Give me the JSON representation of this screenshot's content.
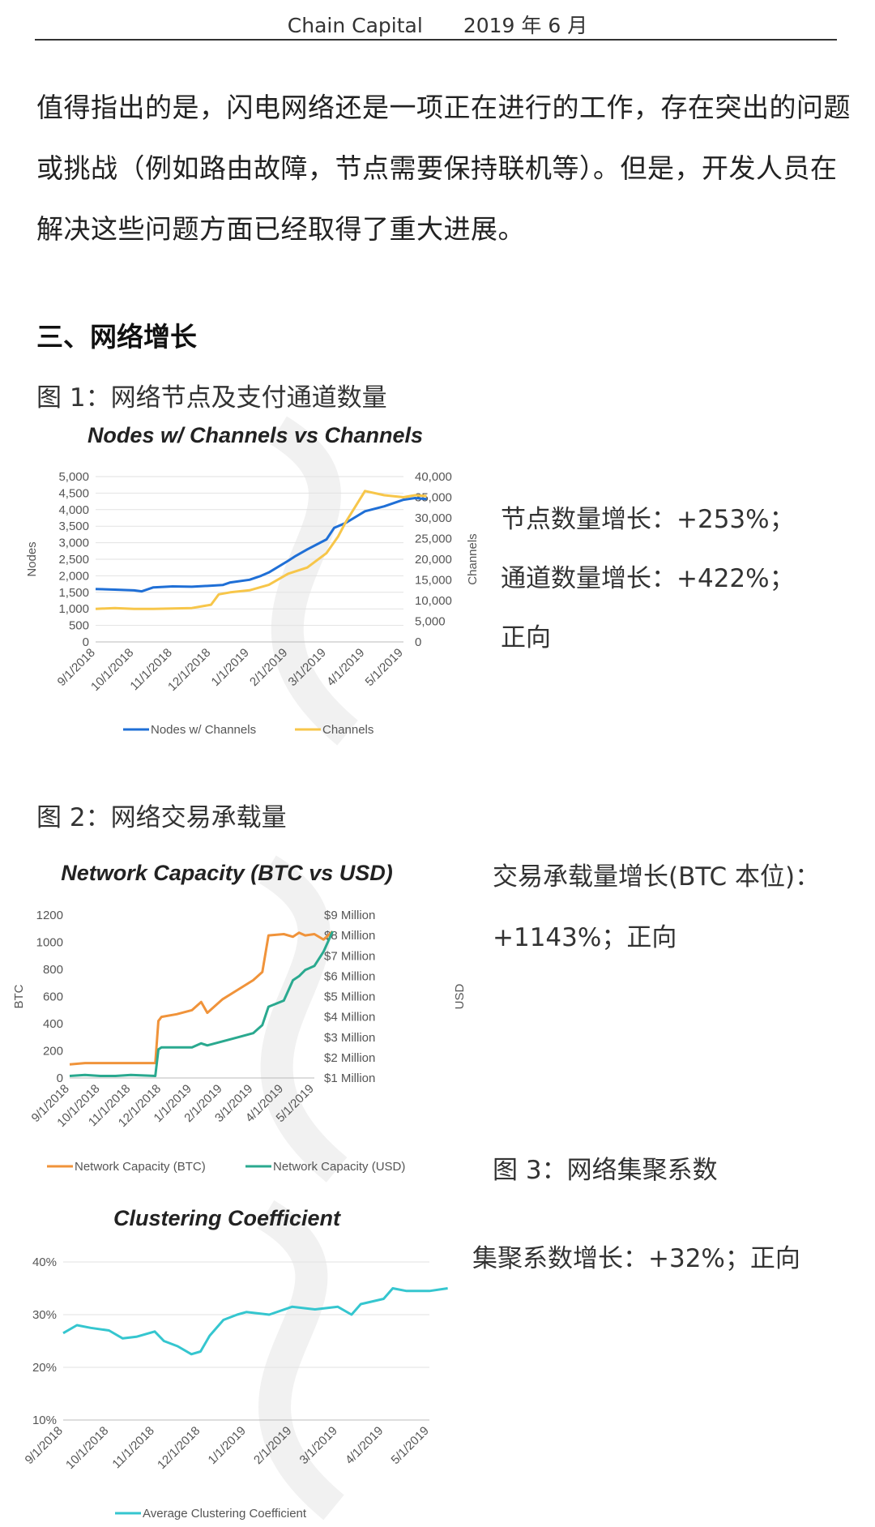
{
  "header": {
    "org": "Chain Capital",
    "date": "2019 年 6 月"
  },
  "paragraph": {
    "lines": [
      "值得指出的是，闪电网络还是一项正在进行的工作，存在突出的问题",
      "或挑战（例如路由故障，节点需要保持联机等）。但是，开发人员在",
      "解决这些问题方面已经取得了重大进展。"
    ]
  },
  "section": {
    "title": "三、网络增长"
  },
  "figures": [
    {
      "caption": "图 1：网络节点及支付通道数量",
      "stats": [
        "节点数量增长：+253%；",
        "通道数量增长：+422%；",
        "正向"
      ]
    },
    {
      "caption": "图 2：网络交易承载量",
      "stats": [
        "交易承载量增长(BTC 本位)：",
        "+1143%；正向"
      ]
    },
    {
      "caption": "图 3：网络集聚系数",
      "stats": [
        "集聚系数增长：+32%；正向"
      ]
    }
  ],
  "colors": {
    "blue": "#1f6fd6",
    "yellow": "#f7c64a",
    "orange": "#f0933a",
    "teal": "#2aa98f",
    "cyan": "#35c6cf"
  },
  "chart_data": [
    {
      "type": "line",
      "title": "Nodes w/ Channels vs Channels",
      "ylabel": "Nodes",
      "y2label": "Channels",
      "x_ticks": [
        "9/1/2018",
        "10/1/2018",
        "11/1/2018",
        "12/1/2018",
        "1/1/2019",
        "2/1/2019",
        "3/1/2019",
        "4/1/2019",
        "5/1/2019"
      ],
      "y_ticks": [
        "5,000",
        "4,500",
        "4,000",
        "3,500",
        "3,000",
        "2,500",
        "2,000",
        "1,500",
        "1,000",
        "500",
        "0"
      ],
      "y2_ticks": [
        "40,000",
        "35,000",
        "30,000",
        "25,000",
        "20,000",
        "15,000",
        "10,000",
        "5,000",
        "0"
      ],
      "ylim": [
        0,
        5000
      ],
      "y2lim": [
        0,
        40000
      ],
      "grid": true,
      "legend_position": "bottom",
      "series": [
        {
          "name": "Nodes w/ Channels",
          "axis": "left",
          "color": "#1f6fd6",
          "x": [
            0,
            0.5,
            1,
            1.2,
            1.5,
            2,
            2.5,
            3,
            3.3,
            3.5,
            4,
            4.3,
            4.5,
            5,
            5.2,
            5.5,
            6,
            6.2,
            6.5,
            7,
            7.5,
            8,
            8.3,
            8.6
          ],
          "values": [
            1600,
            1580,
            1560,
            1530,
            1650,
            1680,
            1670,
            1700,
            1720,
            1800,
            1880,
            2000,
            2100,
            2450,
            2600,
            2800,
            3100,
            3450,
            3600,
            3950,
            4100,
            4300,
            4350,
            4320
          ]
        },
        {
          "name": "Channels",
          "axis": "right",
          "color": "#f7c64a",
          "x": [
            0,
            0.5,
            1,
            1.5,
            2,
            2.5,
            3,
            3.2,
            3.5,
            4,
            4.5,
            5,
            5.5,
            6,
            6.3,
            6.5,
            7,
            7.5,
            8,
            8.3,
            8.6
          ],
          "values": [
            8000,
            8200,
            8000,
            8000,
            8100,
            8200,
            9000,
            11500,
            12000,
            12500,
            13800,
            16500,
            18000,
            21500,
            25500,
            29000,
            36500,
            35500,
            35000,
            35500,
            35300
          ]
        }
      ]
    },
    {
      "type": "line",
      "title": "Network Capacity (BTC vs USD)",
      "ylabel": "BTC",
      "y2label": "USD",
      "x_ticks": [
        "9/1/2018",
        "10/1/2018",
        "11/1/2018",
        "12/1/2018",
        "1/1/2019",
        "2/1/2019",
        "3/1/2019",
        "4/1/2019",
        "5/1/2019"
      ],
      "y_ticks": [
        "1200",
        "1000",
        "800",
        "600",
        "400",
        "200",
        "0"
      ],
      "y2_ticks": [
        "$9 Million",
        "$8 Million",
        "$7 Million",
        "$6 Million",
        "$5 Million",
        "$4 Million",
        "$3 Million",
        "$2 Million",
        "$1 Million"
      ],
      "ylim": [
        0,
        1200
      ],
      "grid": false,
      "legend_position": "bottom",
      "series": [
        {
          "name": "Network Capacity (BTC)",
          "axis": "left",
          "color": "#f0933a",
          "x": [
            0,
            0.5,
            1,
            1.5,
            2,
            2.5,
            2.8,
            2.9,
            3,
            3.5,
            4,
            4.3,
            4.5,
            5,
            5.5,
            6,
            6.3,
            6.5,
            7,
            7.3,
            7.5,
            7.7,
            8,
            8.3,
            8.6
          ],
          "values": [
            100,
            110,
            110,
            110,
            110,
            110,
            110,
            420,
            450,
            470,
            500,
            560,
            480,
            580,
            650,
            720,
            780,
            1050,
            1060,
            1040,
            1070,
            1050,
            1060,
            1020,
            1080
          ]
        },
        {
          "name": "Network Capacity (USD)",
          "axis": "right",
          "color": "#2aa98f",
          "x": [
            0,
            0.5,
            1,
            1.5,
            2,
            2.5,
            2.8,
            2.9,
            3,
            3.5,
            4,
            4.3,
            4.5,
            5,
            5.5,
            6,
            6.3,
            6.5,
            7,
            7.3,
            7.5,
            7.7,
            8,
            8.3,
            8.6
          ],
          "values": [
            1.1,
            1.15,
            1.1,
            1.1,
            1.15,
            1.12,
            1.1,
            2.4,
            2.5,
            2.5,
            2.5,
            2.7,
            2.6,
            2.8,
            3.0,
            3.2,
            3.6,
            4.5,
            4.8,
            5.8,
            6.0,
            6.3,
            6.5,
            7.2,
            8.2
          ]
        }
      ]
    },
    {
      "type": "line",
      "title": "Clustering Coefficient",
      "x_ticks": [
        "9/1/2018",
        "10/1/2018",
        "11/1/2018",
        "12/1/2018",
        "1/1/2019",
        "2/1/2019",
        "3/1/2019",
        "4/1/2019",
        "5/1/2019"
      ],
      "y_ticks": [
        "40%",
        "30%",
        "20%",
        "10%"
      ],
      "ylim": [
        10,
        40
      ],
      "grid": true,
      "legend_position": "bottom",
      "series": [
        {
          "name": "Average Clustering Coefficient",
          "color": "#35c6cf",
          "x": [
            0,
            0.3,
            0.6,
            1,
            1.3,
            1.6,
            2,
            2.2,
            2.5,
            2.8,
            3,
            3.2,
            3.5,
            3.8,
            4,
            4.5,
            5,
            5.5,
            6,
            6.3,
            6.5,
            7,
            7.2,
            7.5,
            8,
            8.4
          ],
          "values": [
            26.5,
            28,
            27.5,
            27,
            25.5,
            25.8,
            26.8,
            25,
            24,
            22.5,
            23,
            26,
            29,
            30,
            30.5,
            30,
            31.5,
            31,
            31.5,
            30,
            32,
            33,
            35,
            34.5,
            34.5,
            35
          ]
        }
      ]
    }
  ]
}
